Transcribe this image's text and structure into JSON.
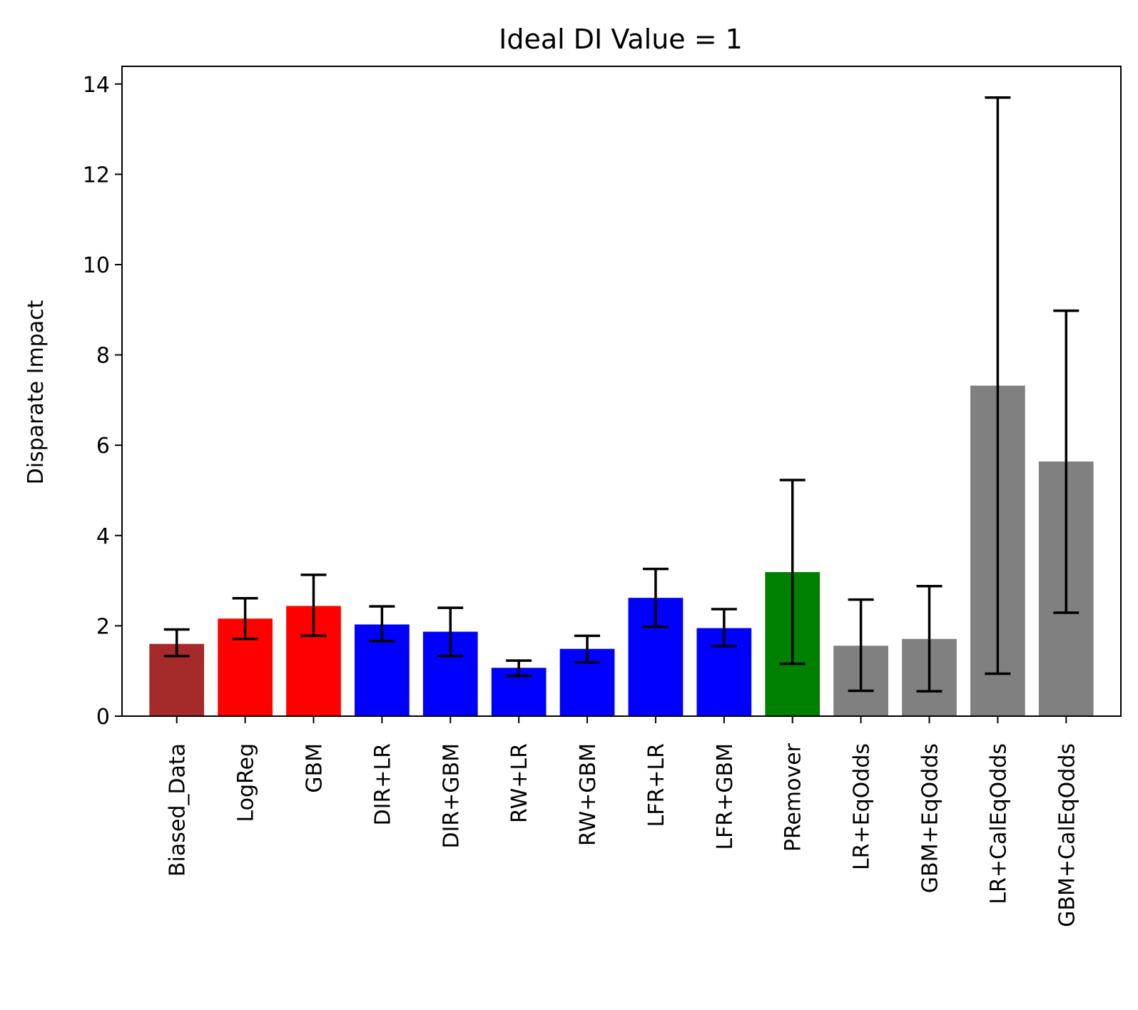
{
  "chart_data": {
    "type": "bar",
    "title": "Ideal DI Value = 1",
    "xlabel": "",
    "ylabel": "Disparate Impact",
    "ylim": [
      0,
      14.4
    ],
    "yticks": [
      0,
      2,
      4,
      6,
      8,
      10,
      12,
      14
    ],
    "ytick_labels": [
      "0",
      "2",
      "4",
      "6",
      "8",
      "10",
      "12",
      "14"
    ],
    "grid": false,
    "categories": [
      "Biased_Data",
      "LogReg",
      "GBM",
      "DIR+LR",
      "DIR+GBM",
      "RW+LR",
      "RW+GBM",
      "LFR+LR",
      "LFR+GBM",
      "PRemover",
      "LR+EqOdds",
      "GBM+EqOdds",
      "LR+CalEqOdds",
      "GBM+CalEqOdds"
    ],
    "values": [
      1.6,
      2.16,
      2.44,
      2.03,
      1.87,
      1.07,
      1.49,
      2.62,
      1.95,
      3.19,
      1.56,
      1.71,
      7.32,
      5.64
    ],
    "error_low": [
      1.33,
      1.71,
      1.78,
      1.66,
      1.33,
      0.89,
      1.19,
      1.98,
      1.55,
      1.16,
      0.56,
      0.55,
      0.94,
      2.29
    ],
    "error_high": [
      1.92,
      2.61,
      3.13,
      2.43,
      2.4,
      1.23,
      1.78,
      3.26,
      2.37,
      5.23,
      2.58,
      2.88,
      13.7,
      8.98
    ],
    "colors": [
      "#a52a2a",
      "#ff0000",
      "#ff0000",
      "#0000ff",
      "#0000ff",
      "#0000ff",
      "#0000ff",
      "#0000ff",
      "#0000ff",
      "#008000",
      "#808080",
      "#808080",
      "#808080",
      "#808080"
    ]
  }
}
